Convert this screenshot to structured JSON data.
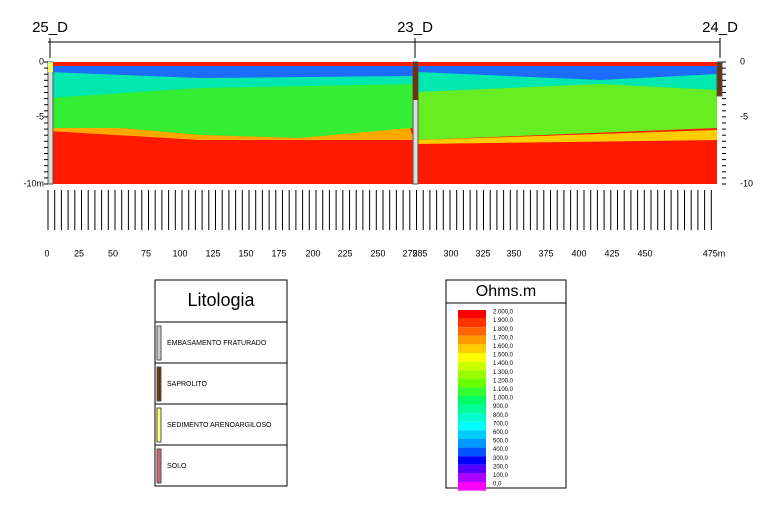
{
  "wells": [
    {
      "label": "25_D"
    },
    {
      "label": "23_D"
    },
    {
      "label": "24_D"
    }
  ],
  "depth_axis": {
    "left": [
      "0",
      "-5",
      "-10m"
    ],
    "right": [
      "0",
      "-5",
      "-10"
    ]
  },
  "distance_axis": {
    "labels": [
      "0",
      "25",
      "50",
      "75",
      "100",
      "125",
      "150",
      "175",
      "200",
      "225",
      "250",
      "275",
      "285",
      "300",
      "325",
      "350",
      "375",
      "400",
      "425",
      "450",
      "475m"
    ]
  },
  "lithology_legend": {
    "title": "Litologia",
    "items": [
      "EMBASAMENTO FRATURADO",
      "SAPROLITO",
      "SEDIMENTO ARENOARGILOSO",
      "SOLO"
    ]
  },
  "resistivity_legend": {
    "title": "Ohms.m",
    "labels": [
      "2.000,0",
      "1.900,0",
      "1.800,0",
      "1.700,0",
      "1.600,0",
      "1.500,0",
      "1.400,0",
      "1.300,0",
      "1.200,0",
      "1.100,0",
      "1.000,0",
      "900,0",
      "800,0",
      "700,0",
      "600,0",
      "500,0",
      "400,0",
      "300,0",
      "200,0",
      "100,0",
      "0,0"
    ]
  }
}
